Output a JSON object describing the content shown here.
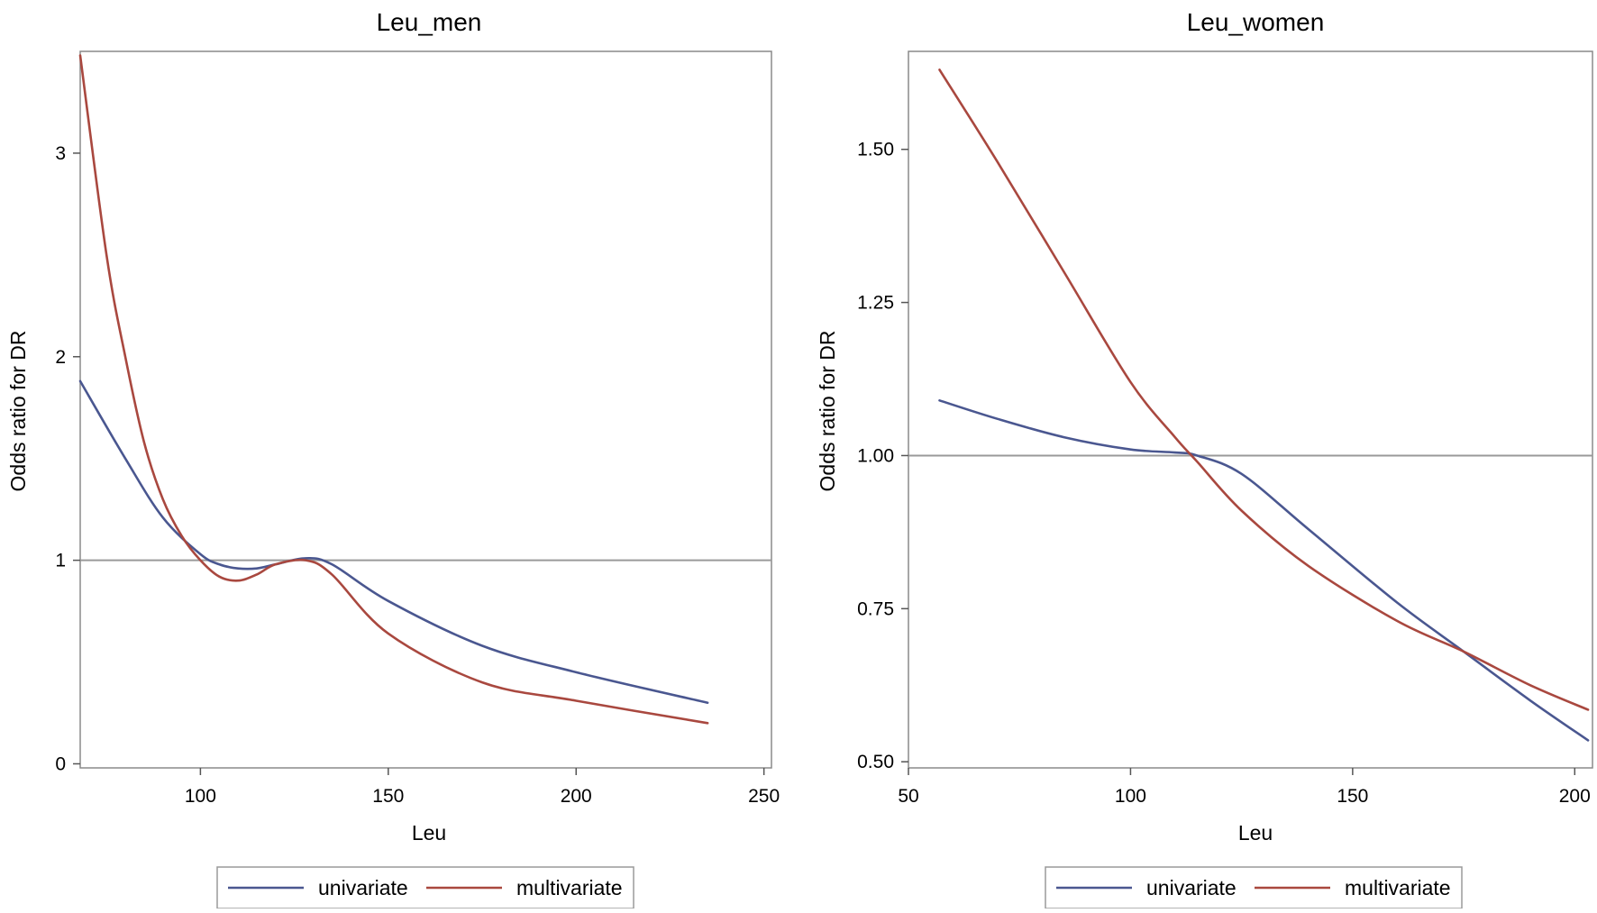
{
  "chart_data": [
    {
      "type": "line",
      "title": "Leu_men",
      "xlabel": "Leu",
      "ylabel": "Odds ratio for DR",
      "xlim": [
        68,
        252
      ],
      "ylim": [
        -0.02,
        3.5
      ],
      "xticks": [
        100,
        150,
        200,
        250
      ],
      "yticks": [
        0,
        1,
        2,
        3
      ],
      "xtick_labels": [
        "100",
        "150",
        "200",
        "250"
      ],
      "ytick_labels": [
        "0",
        "1",
        "2",
        "3"
      ],
      "reference_line": 1,
      "series": [
        {
          "name": "univariate",
          "color": "#4a5790",
          "x": [
            68,
            80,
            90,
            100,
            105,
            110,
            115,
            120,
            128,
            135,
            150,
            175,
            200,
            235
          ],
          "y": [
            1.88,
            1.5,
            1.21,
            1.03,
            0.98,
            0.96,
            0.96,
            0.98,
            1.01,
            0.98,
            0.8,
            0.58,
            0.45,
            0.3
          ]
        },
        {
          "name": "multivariate",
          "color": "#a9483f",
          "x": [
            68,
            75,
            80,
            85,
            90,
            95,
            100,
            105,
            110,
            115,
            120,
            128,
            135,
            150,
            175,
            200,
            235
          ],
          "y": [
            3.48,
            2.5,
            2.0,
            1.58,
            1.3,
            1.12,
            1.0,
            0.92,
            0.9,
            0.93,
            0.98,
            1.0,
            0.93,
            0.64,
            0.4,
            0.31,
            0.2
          ]
        }
      ],
      "legend": [
        "univariate",
        "multivariate"
      ]
    },
    {
      "type": "line",
      "title": "Leu_women",
      "xlabel": "Leu",
      "ylabel": "Odds ratio for DR",
      "xlim": [
        50,
        204
      ],
      "ylim": [
        0.49,
        1.66
      ],
      "xticks": [
        50,
        100,
        150,
        200
      ],
      "yticks": [
        0.5,
        0.75,
        1.0,
        1.25,
        1.5
      ],
      "xtick_labels": [
        "50",
        "100",
        "150",
        "200"
      ],
      "ytick_labels": [
        "0.50",
        "0.75",
        "1.00",
        "1.25",
        "1.50"
      ],
      "reference_line": 1,
      "series": [
        {
          "name": "univariate",
          "color": "#4a5790",
          "x": [
            57,
            70,
            85,
            100,
            110,
            115,
            125,
            140,
            160,
            175,
            190,
            203
          ],
          "y": [
            1.09,
            1.06,
            1.03,
            1.01,
            1.005,
            1.0,
            0.97,
            0.88,
            0.76,
            0.68,
            0.6,
            0.535
          ]
        },
        {
          "name": "multivariate",
          "color": "#a9483f",
          "x": [
            57,
            70,
            85,
            100,
            110,
            115,
            125,
            140,
            160,
            175,
            190,
            203
          ],
          "y": [
            1.63,
            1.48,
            1.3,
            1.12,
            1.03,
            0.99,
            0.91,
            0.82,
            0.73,
            0.68,
            0.625,
            0.585
          ]
        }
      ],
      "legend": [
        "univariate",
        "multivariate"
      ]
    }
  ]
}
